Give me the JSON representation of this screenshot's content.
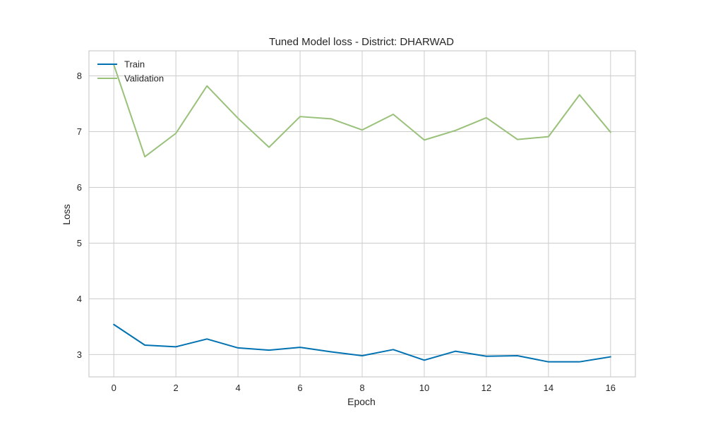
{
  "chart_data": {
    "type": "line",
    "title": "Tuned Model loss - District: DHARWAD",
    "xlabel": "Epoch",
    "ylabel": "Loss",
    "x": [
      0,
      1,
      2,
      3,
      4,
      5,
      6,
      7,
      8,
      9,
      10,
      11,
      12,
      13,
      14,
      15,
      16
    ],
    "xlim": [
      -0.8,
      16.8
    ],
    "ylim": [
      2.6,
      8.45
    ],
    "xticks": [
      "0",
      "2",
      "4",
      "6",
      "8",
      "10",
      "12",
      "14",
      "16"
    ],
    "yticks": [
      "3",
      "4",
      "5",
      "6",
      "7",
      "8"
    ],
    "grid": true,
    "legend_position": "top-left",
    "series": [
      {
        "name": "Train",
        "color": "#0072b2",
        "values": [
          3.54,
          3.17,
          3.14,
          3.28,
          3.12,
          3.08,
          3.13,
          3.05,
          2.98,
          3.09,
          2.9,
          3.06,
          2.97,
          2.98,
          2.87,
          2.87,
          2.96
        ]
      },
      {
        "name": "Validation",
        "color": "#99c17a",
        "values": [
          8.2,
          6.55,
          6.97,
          7.82,
          7.24,
          6.72,
          7.27,
          7.23,
          7.03,
          7.31,
          6.85,
          7.02,
          7.25,
          6.86,
          6.91,
          7.66,
          6.99
        ]
      }
    ],
    "colors": {
      "grid": "#cccccc",
      "frame": "#cccccc",
      "text": "#262626"
    }
  }
}
